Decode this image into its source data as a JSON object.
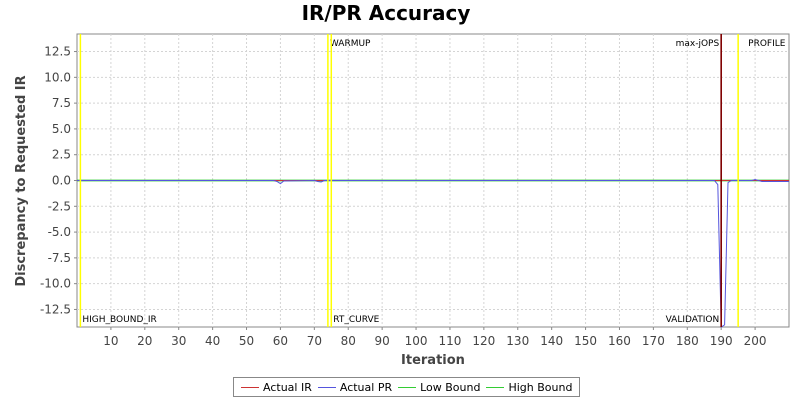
{
  "chart_data": {
    "type": "line",
    "title": "IR/PR Accuracy",
    "xlabel": "Iteration",
    "ylabel": "Discrepancy to Requested IR",
    "xlim": [
      0,
      210
    ],
    "ylim": [
      -14.2,
      14.2
    ],
    "x_ticks": [
      10,
      20,
      30,
      40,
      50,
      60,
      70,
      80,
      90,
      100,
      110,
      120,
      130,
      140,
      150,
      160,
      170,
      180,
      190,
      200
    ],
    "y_ticks": [
      -12.5,
      -10.0,
      -7.5,
      -5.0,
      -2.5,
      0.0,
      2.5,
      5.0,
      7.5,
      10.0,
      12.5
    ],
    "grid": true,
    "legend_position": "bottom",
    "markers": [
      {
        "x": 1,
        "color": "#ffff00",
        "label": "HIGH_BOUND_IR",
        "label_pos": "bottom"
      },
      {
        "x": 74,
        "color": "#ffff00",
        "label": "WARMUP",
        "label_pos": "top"
      },
      {
        "x": 75,
        "color": "#ffff00",
        "label": "RT_CURVE",
        "label_pos": "bottom"
      },
      {
        "x": 190,
        "color": "#800000",
        "label": "max-jOPS",
        "label_pos": "top-left"
      },
      {
        "x": 190,
        "color": "#800000",
        "label": "VALIDATION",
        "label_pos": "bottom-left"
      },
      {
        "x": 195,
        "color": "#ffff00",
        "label": "PROFILE",
        "label_pos": "top"
      }
    ],
    "series": [
      {
        "name": "Actual IR",
        "color": "#cc3333",
        "x": [
          0,
          210
        ],
        "y": [
          0,
          0
        ]
      },
      {
        "name": "Actual PR",
        "color": "#5555dd",
        "x": [
          0,
          58,
          59,
          60,
          61,
          70,
          71,
          72,
          73,
          188,
          189,
          190,
          191,
          192,
          193,
          199,
          200,
          202,
          210
        ],
        "y": [
          0,
          0,
          -0.1,
          -0.3,
          -0.05,
          0,
          -0.1,
          -0.15,
          0,
          0,
          -0.4,
          -14.2,
          -14.0,
          -0.2,
          0,
          0,
          0.1,
          -0.1,
          -0.1
        ]
      },
      {
        "name": "Low Bound",
        "color": "#33cc33",
        "x": [
          0,
          73,
          192,
          210
        ],
        "y": [
          0,
          0,
          0,
          0
        ]
      },
      {
        "name": "High Bound",
        "color": "#33cc33",
        "x": [
          0,
          73,
          192,
          210
        ],
        "y": [
          0,
          0,
          0,
          0
        ]
      }
    ]
  }
}
